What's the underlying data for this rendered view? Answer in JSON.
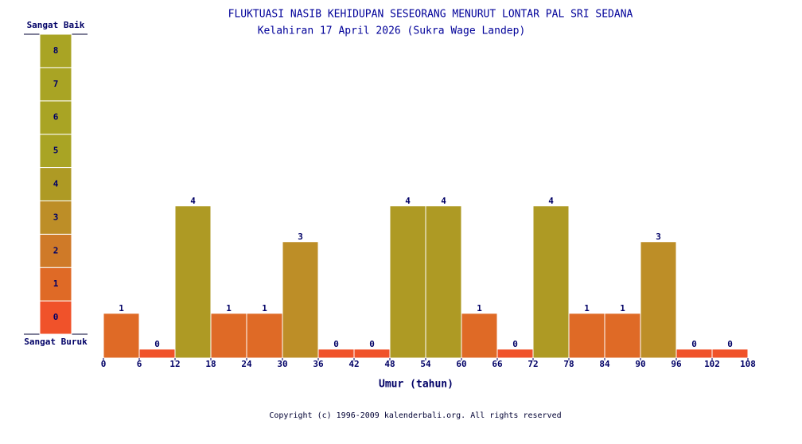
{
  "chart_data": {
    "type": "histogram",
    "title": "FLUKTUASI NASIB KEHIDUPAN SESEORANG MENURUT LONTAR PAL SRI SEDANA",
    "subtitle": "Kelahiran 17 April 2026 (Sukra Wage Landep)",
    "xlabel": "Umur (tahun)",
    "bins": [
      0,
      6,
      12,
      18,
      24,
      30,
      36,
      42,
      48,
      54,
      60,
      66,
      72,
      78,
      84,
      90,
      96,
      102,
      108
    ],
    "values": [
      1,
      0,
      4,
      1,
      1,
      3,
      0,
      0,
      4,
      4,
      1,
      0,
      4,
      1,
      1,
      3,
      0,
      0
    ],
    "xlim": [
      0,
      108
    ],
    "xticks": [
      0,
      6,
      12,
      18,
      24,
      30,
      36,
      42,
      48,
      54,
      60,
      66,
      72,
      78,
      84,
      90,
      96,
      102,
      108
    ],
    "ylim": [
      -0.25,
      9
    ],
    "scale": {
      "top_label": "Sangat Baik",
      "bottom_label": "Sangat Buruk",
      "levels": [
        0,
        1,
        2,
        3,
        4,
        5,
        6,
        7,
        8
      ],
      "colors": [
        "#f0522a",
        "#df6a26",
        "#cf7a28",
        "#bd8e27",
        "#ae9a24",
        "#a9a424",
        "#a9a424",
        "#a9a424",
        "#a9a424"
      ]
    },
    "footer": "Copyright (c) 1996-2009 kalenderbali.org. All rights reserved"
  }
}
